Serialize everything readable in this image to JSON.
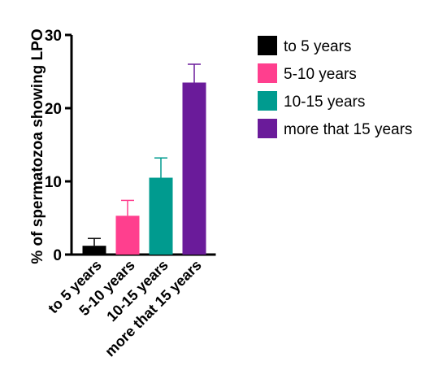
{
  "chart_data": {
    "type": "bar",
    "categories": [
      "to 5 years",
      "5-10 years",
      "10-15 years",
      "more that 15 years"
    ],
    "values": [
      1.2,
      5.3,
      10.5,
      23.5
    ],
    "error_upper": [
      2.2,
      7.4,
      13.2,
      26.0
    ],
    "colors": [
      "#000000",
      "#ff3f8e",
      "#009b8f",
      "#6a1b9a"
    ],
    "ylabel": "% of spermatozoa showing LPO",
    "yticks": [
      0,
      10,
      20,
      30
    ],
    "ylim": [
      0,
      30
    ],
    "grid": false,
    "legend": {
      "position": "right",
      "entries": [
        "to 5 years",
        "5-10 years",
        "10-15 years",
        "more that 15 years"
      ]
    }
  }
}
